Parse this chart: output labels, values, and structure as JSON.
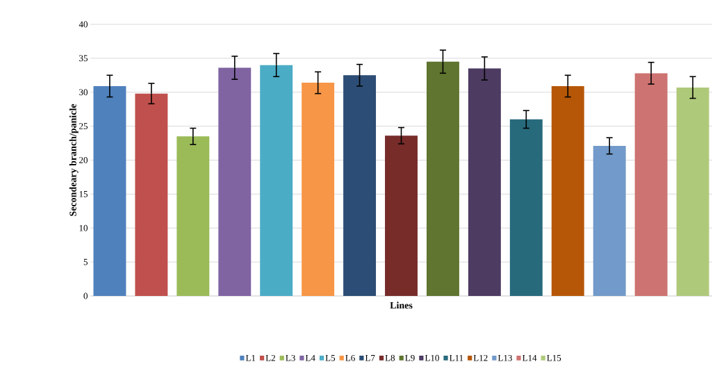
{
  "chart_data": {
    "type": "bar",
    "xlabel": "Lines",
    "ylabel": "Secondeary branch/panicle",
    "categories": [
      null
    ],
    "series": [
      {
        "name": "L1",
        "color": "#4f81bd",
        "values": [
          30.9
        ],
        "errors": [
          1.6
        ]
      },
      {
        "name": "L2",
        "color": "#c0504d",
        "values": [
          29.8
        ],
        "errors": [
          1.5
        ]
      },
      {
        "name": "L3",
        "color": "#9bbb59",
        "values": [
          23.5
        ],
        "errors": [
          1.2
        ]
      },
      {
        "name": "L4",
        "color": "#8064a2",
        "values": [
          33.6
        ],
        "errors": [
          1.7
        ]
      },
      {
        "name": "L5",
        "color": "#4bacc6",
        "values": [
          34.0
        ],
        "errors": [
          1.7
        ]
      },
      {
        "name": "L6",
        "color": "#f79646",
        "values": [
          31.4
        ],
        "errors": [
          1.6
        ]
      },
      {
        "name": "L7",
        "color": "#2c4d75",
        "values": [
          32.5
        ],
        "errors": [
          1.6
        ]
      },
      {
        "name": "L8",
        "color": "#772c2a",
        "values": [
          23.6
        ],
        "errors": [
          1.2
        ]
      },
      {
        "name": "L9",
        "color": "#5f7530",
        "values": [
          34.5
        ],
        "errors": [
          1.7
        ]
      },
      {
        "name": "L10",
        "color": "#4d3b62",
        "values": [
          33.5
        ],
        "errors": [
          1.7
        ]
      },
      {
        "name": "L11",
        "color": "#276a7c",
        "values": [
          26.0
        ],
        "errors": [
          1.3
        ]
      },
      {
        "name": "L12",
        "color": "#b65708",
        "values": [
          30.9
        ],
        "errors": [
          1.6
        ]
      },
      {
        "name": "L13",
        "color": "#729aca",
        "values": [
          22.1
        ],
        "errors": [
          1.2
        ]
      },
      {
        "name": "L14",
        "color": "#cd7371",
        "values": [
          32.8
        ],
        "errors": [
          1.6
        ]
      },
      {
        "name": "L15",
        "color": "#afc97a",
        "values": [
          30.7
        ],
        "errors": [
          1.6
        ]
      }
    ],
    "ylim": [
      0,
      40
    ],
    "yticks": [
      0,
      5,
      10,
      15,
      20,
      25,
      30,
      35,
      40
    ],
    "grid": "y",
    "legend": "bottom",
    "tick_labels": "y"
  }
}
